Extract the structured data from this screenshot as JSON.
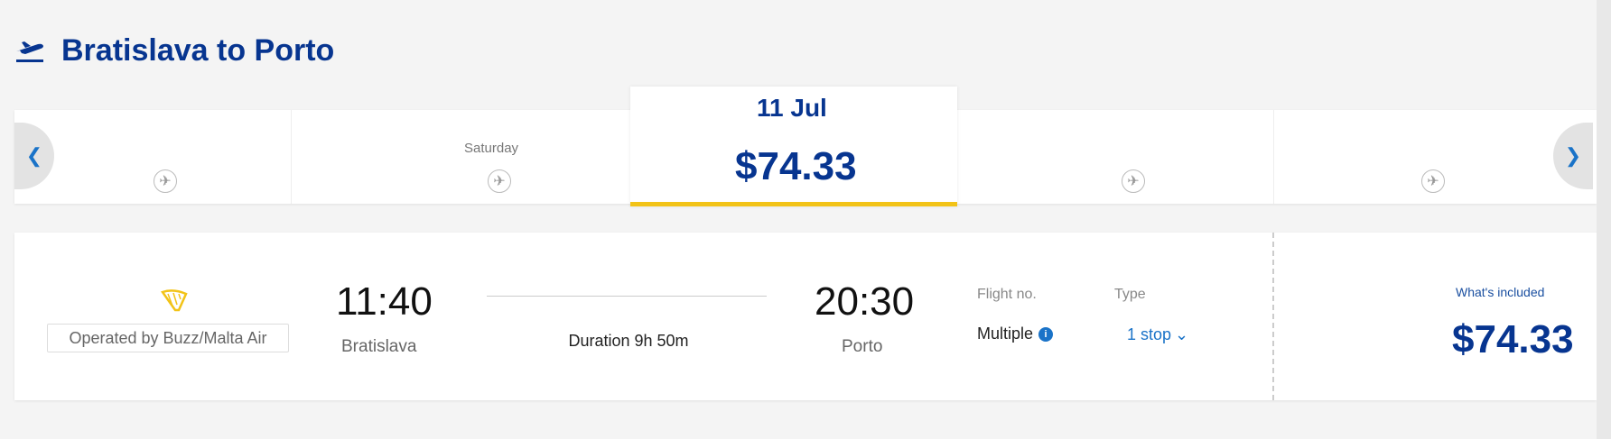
{
  "header": {
    "title": "Bratislava to Porto",
    "icon": "plane-takeoff-icon",
    "brand_color": "#073590"
  },
  "date_strip": {
    "cells": [
      {
        "date": "",
        "day": "",
        "icon": "plane-icon"
      },
      {
        "date": "",
        "day": "Saturday",
        "icon": "plane-icon"
      },
      {
        "date": "",
        "day": "",
        "icon": "plane-icon"
      },
      {
        "date": "",
        "day": "",
        "icon": "plane-icon"
      }
    ],
    "selected": {
      "date": "11 Jul",
      "price": "$74.33"
    },
    "highlight_color": "#f2c317",
    "prev_icon": "chevron-left-icon",
    "next_icon": "chevron-right-icon"
  },
  "flight": {
    "operated_by": "Operated by Buzz/Malta Air",
    "airline_logo": "harp-logo-icon",
    "departure": {
      "time": "11:40",
      "city": "Bratislava"
    },
    "duration": "Duration 9h 50m",
    "arrival": {
      "time": "20:30",
      "city": "Porto"
    },
    "flight_no_label": "Flight no.",
    "flight_no_value": "Multiple",
    "type_label": "Type",
    "stops": "1 stop",
    "price_label": "What's included",
    "price": "$74.33"
  }
}
